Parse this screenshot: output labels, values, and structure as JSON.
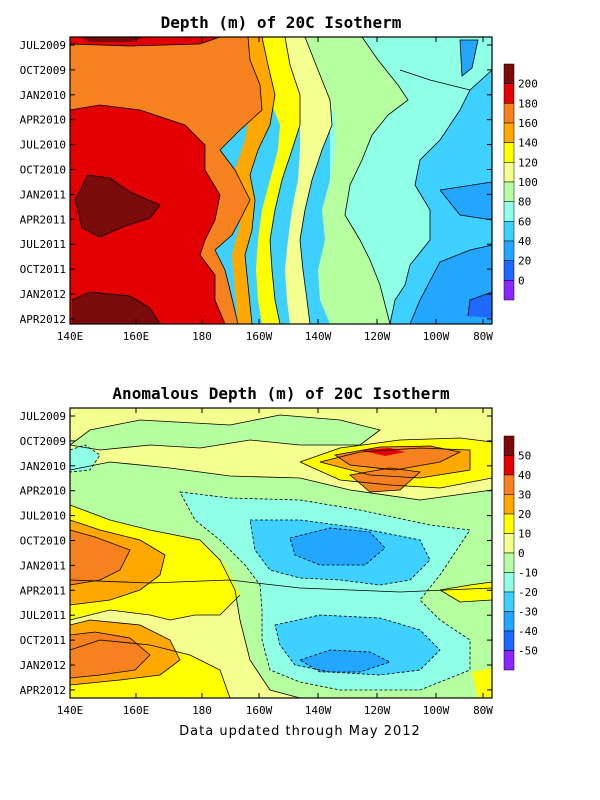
{
  "footnote": "Data updated through May 2012",
  "chart_data": [
    {
      "type": "heatmap",
      "title": "Depth (m) of 20C Isotherm",
      "x_ticks": [
        "140E",
        "160E",
        "180",
        "160W",
        "140W",
        "120W",
        "100W",
        "80W"
      ],
      "y_ticks": [
        "JUL2009",
        "OCT2009",
        "JAN2010",
        "APR2010",
        "JUL2010",
        "OCT2010",
        "JAN2011",
        "APR2011",
        "JUL2011",
        "OCT2011",
        "JAN2012",
        "APR2012"
      ],
      "colorbar": {
        "levels": [
          "200",
          "180",
          "160",
          "140",
          "120",
          "100",
          "80",
          "60",
          "40",
          "20",
          "0"
        ],
        "colors": [
          "#7b0a0a",
          "#e30000",
          "#f5821f",
          "#ffa800",
          "#ffff00",
          "#f4ff90",
          "#b6ffa1",
          "#8fffe6",
          "#3ed1ff",
          "#23a6ff",
          "#1e69ff",
          "#8d25ff"
        ]
      },
      "bands": [
        {
          "value": 185,
          "color": "#e30000",
          "w": [
            0.0,
            0.0,
            0.0,
            0.0,
            0.0,
            0.0,
            0.0,
            0.0,
            0.0,
            0.0,
            0.0,
            0.0,
            0.0,
            0.0,
            0.0,
            0.0,
            0.0,
            0.0,
            0.0,
            0.0,
            0.0,
            0.0,
            0.0,
            0.0
          ],
          "e": [
            0.0,
            0.0,
            0.0,
            0.0,
            0.0,
            0.0,
            0.0,
            0.0,
            0.0,
            0.0,
            0.0,
            0.0,
            0.0,
            0.0,
            0.0,
            0.0,
            0.0,
            0.0,
            0.0,
            0.0,
            0.0,
            0.0,
            0.0,
            0.0
          ]
        }
      ]
    },
    {
      "type": "heatmap",
      "title": "Anomalous Depth (m) of 20C Isotherm",
      "x_ticks": [
        "140E",
        "160E",
        "180",
        "160W",
        "140W",
        "120W",
        "100W",
        "80W"
      ],
      "y_ticks": [
        "JUL2009",
        "OCT2009",
        "JAN2010",
        "APR2010",
        "JUL2010",
        "OCT2010",
        "JAN2011",
        "APR2011",
        "JUL2011",
        "OCT2011",
        "JAN2012",
        "APR2012"
      ],
      "colorbar": {
        "levels": [
          "50",
          "40",
          "30",
          "20",
          "10",
          "0",
          "-10",
          "-20",
          "-30",
          "-40",
          "-50"
        ],
        "colors": [
          "#7b0a0a",
          "#e30000",
          "#f5821f",
          "#ffa800",
          "#ffff00",
          "#f4ff90",
          "#b6ffa1",
          "#8fffe6",
          "#3ed1ff",
          "#23a6ff",
          "#1e69ff",
          "#8d25ff"
        ]
      }
    }
  ]
}
